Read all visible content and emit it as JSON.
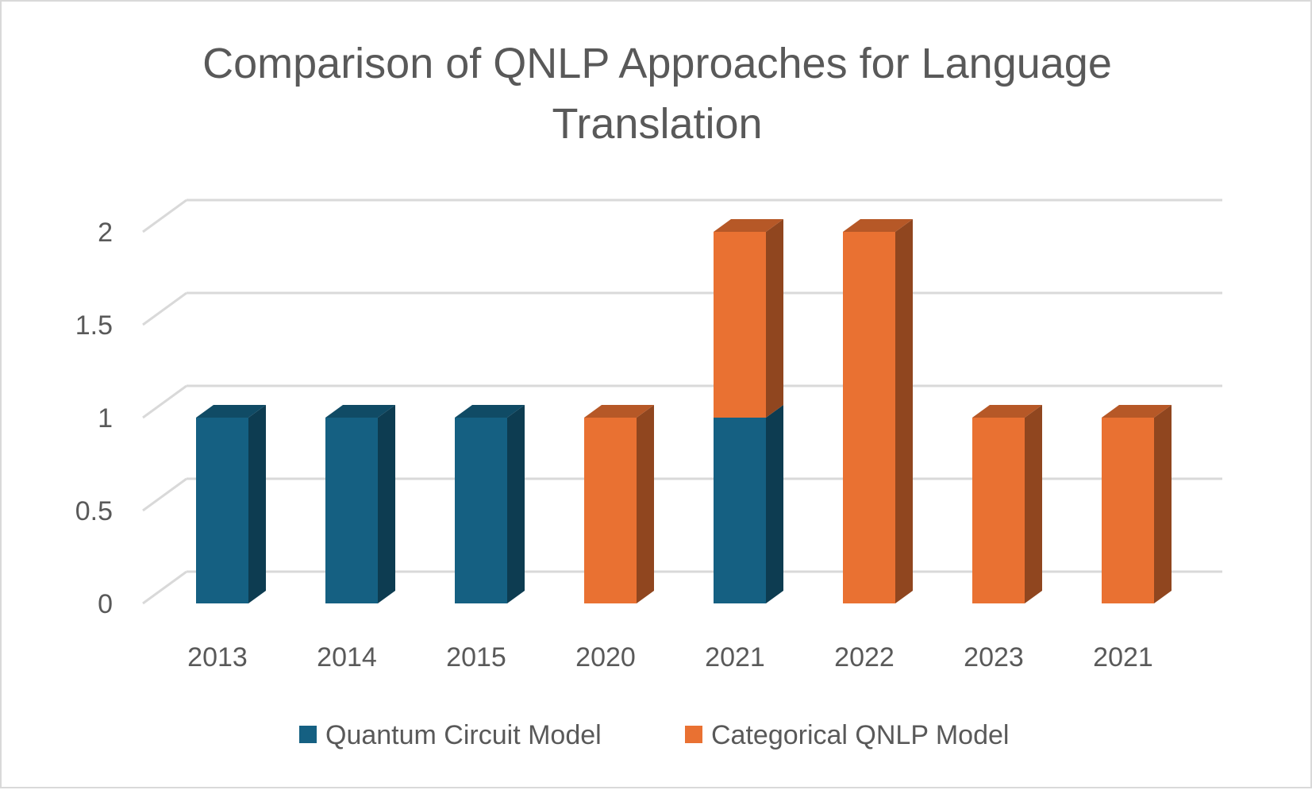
{
  "chart_data": {
    "type": "bar",
    "stacked": true,
    "three_d": true,
    "title": "Comparison of QNLP Approaches for Language Translation",
    "title_lines": [
      "Comparison of QNLP Approaches for Language",
      "Translation"
    ],
    "categories": [
      "2013",
      "2014",
      "2015",
      "2020",
      "2021",
      "2022",
      "2023",
      "2021"
    ],
    "series": [
      {
        "name": "Quantum Circuit Model",
        "values": [
          1,
          1,
          1,
          0,
          1,
          0,
          0,
          0
        ],
        "color": "#156082"
      },
      {
        "name": "Categorical QNLP Model",
        "values": [
          0,
          0,
          0,
          1,
          1,
          2,
          1,
          1
        ],
        "color": "#E97132"
      }
    ],
    "y_ticks": [
      "0",
      "0.5",
      "1",
      "1.5",
      "2"
    ],
    "ylim": [
      0,
      2
    ],
    "xlabel": "",
    "ylabel": "",
    "grid": true,
    "legend_position": "bottom"
  }
}
